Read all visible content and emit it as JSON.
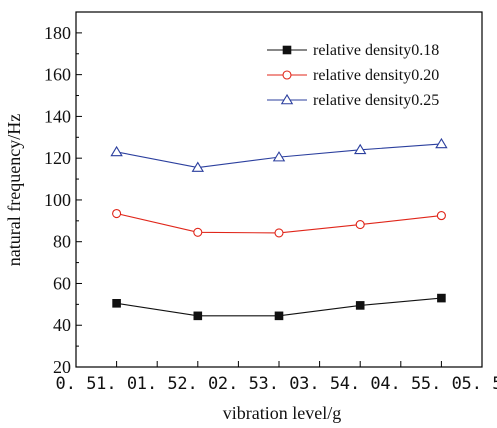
{
  "chart_data": {
    "type": "line",
    "title": "",
    "xlabel": "vibration level/g",
    "ylabel": "natural frequency/Hz",
    "xlim": [
      0.5,
      5.5
    ],
    "ylim": [
      20,
      190
    ],
    "x_ticks": [
      "0. 5",
      "1. 0",
      "1. 5",
      "2. 0",
      "2. 5",
      "3. 0",
      "3. 5",
      "4. 0",
      "4. 5",
      "5. 0",
      "5. 5"
    ],
    "x_tick_values": [
      0.5,
      1.0,
      1.5,
      2.0,
      2.5,
      3.0,
      3.5,
      4.0,
      4.5,
      5.0,
      5.5
    ],
    "y_ticks": [
      "20",
      "40",
      "60",
      "80",
      "100",
      "120",
      "140",
      "160",
      "180"
    ],
    "y_tick_values": [
      20,
      40,
      60,
      80,
      100,
      120,
      140,
      160,
      180
    ],
    "grid": false,
    "legend_position": "top-right",
    "x": [
      1.0,
      2.0,
      3.0,
      4.0,
      5.0
    ],
    "series": [
      {
        "name": "relative density0.18",
        "values": [
          50.5,
          44.5,
          44.5,
          49.5,
          53.0
        ],
        "color": "#111111",
        "marker": "square-filled"
      },
      {
        "name": "relative density0.20",
        "values": [
          93.5,
          84.5,
          84.2,
          88.2,
          92.5
        ],
        "color": "#e0261a",
        "marker": "circle-open"
      },
      {
        "name": "relative density0.25",
        "values": [
          123.0,
          115.5,
          120.5,
          124.0,
          126.8
        ],
        "color": "#2b3f9e",
        "marker": "triangle-open"
      }
    ]
  }
}
